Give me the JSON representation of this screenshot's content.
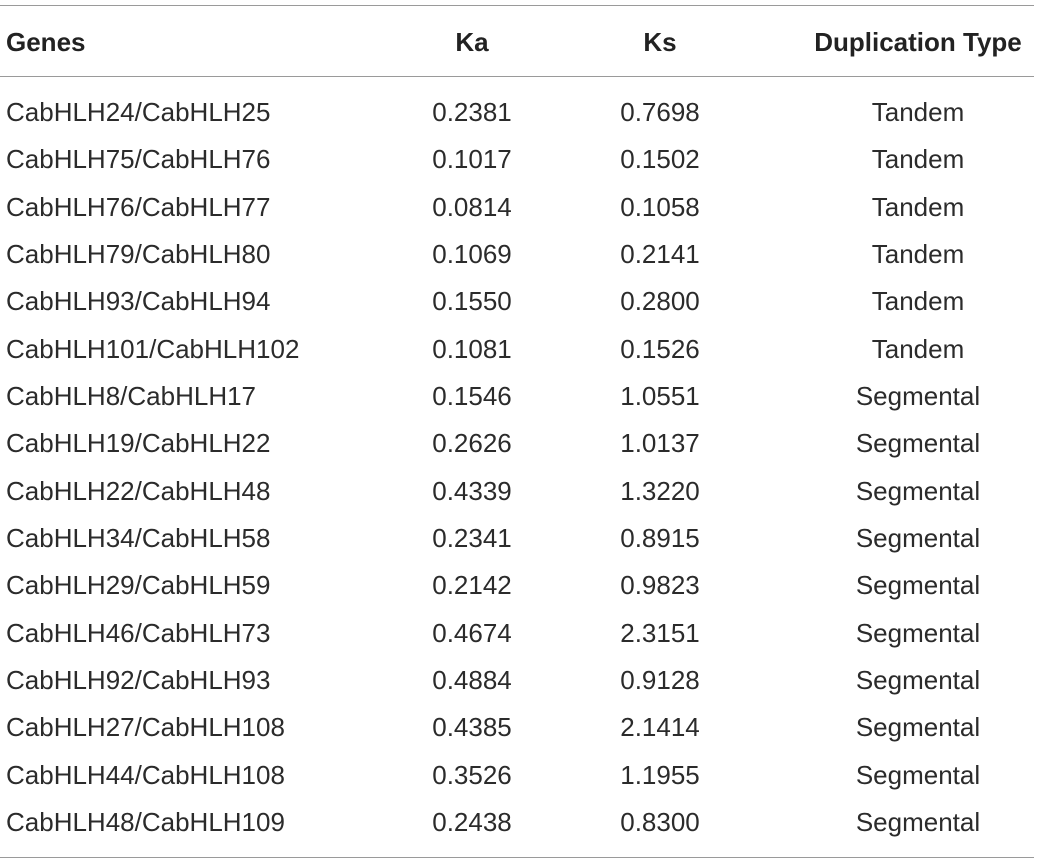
{
  "table": {
    "header": [
      "Genes",
      "Ka",
      "Ks",
      "Duplication Type"
    ],
    "rows": [
      [
        "CabHLH24/CabHLH25",
        "0.2381",
        "0.7698",
        "Tandem"
      ],
      [
        "CabHLH75/CabHLH76",
        "0.1017",
        "0.1502",
        "Tandem"
      ],
      [
        "CabHLH76/CabHLH77",
        "0.0814",
        "0.1058",
        "Tandem"
      ],
      [
        "CabHLH79/CabHLH80",
        "0.1069",
        "0.2141",
        "Tandem"
      ],
      [
        "CabHLH93/CabHLH94",
        "0.1550",
        "0.2800",
        "Tandem"
      ],
      [
        "CabHLH101/CabHLH102",
        "0.1081",
        "0.1526",
        "Tandem"
      ],
      [
        "CabHLH8/CabHLH17",
        "0.1546",
        "1.0551",
        "Segmental"
      ],
      [
        "CabHLH19/CabHLH22",
        "0.2626",
        "1.0137",
        "Segmental"
      ],
      [
        "CabHLH22/CabHLH48",
        "0.4339",
        "1.3220",
        "Segmental"
      ],
      [
        "CabHLH34/CabHLH58",
        "0.2341",
        "0.8915",
        "Segmental"
      ],
      [
        "CabHLH29/CabHLH59",
        "0.2142",
        "0.9823",
        "Segmental"
      ],
      [
        "CabHLH46/CabHLH73",
        "0.4674",
        "2.3151",
        "Segmental"
      ],
      [
        "CabHLH92/CabHLH93",
        "0.4884",
        "0.9128",
        "Segmental"
      ],
      [
        "CabHLH27/CabHLH108",
        "0.4385",
        "2.1414",
        "Segmental"
      ],
      [
        "CabHLH44/CabHLH108",
        "0.3526",
        "1.1955",
        "Segmental"
      ],
      [
        "CabHLH48/CabHLH109",
        "0.2438",
        "0.8300",
        "Segmental"
      ]
    ]
  }
}
